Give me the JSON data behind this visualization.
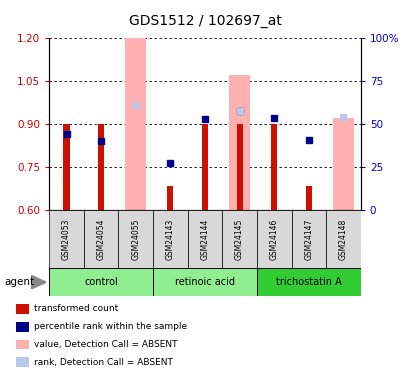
{
  "title": "GDS1512 / 102697_at",
  "samples": [
    "GSM24053",
    "GSM24054",
    "GSM24055",
    "GSM24143",
    "GSM24144",
    "GSM24145",
    "GSM24146",
    "GSM24147",
    "GSM24148"
  ],
  "red_bars": [
    0.9,
    0.9,
    null,
    0.685,
    0.9,
    0.9,
    0.9,
    0.685,
    null
  ],
  "red_bar_base": 0.6,
  "pink_bars": [
    null,
    null,
    1.2,
    null,
    null,
    1.07,
    null,
    null,
    0.92
  ],
  "pink_bar_base": 0.6,
  "blue_squares": [
    0.865,
    0.84,
    null,
    null,
    0.915,
    null,
    0.92,
    0.845,
    null
  ],
  "blue_squares_left_offset": [
    0.0,
    0.0,
    0.0,
    0.0,
    0.0,
    0.0,
    0.0,
    0.0,
    0.0
  ],
  "blue_squares2": [
    null,
    null,
    null,
    0.765,
    null,
    0.945,
    null,
    null,
    null
  ],
  "light_blue_squares": [
    null,
    null,
    0.965,
    null,
    null,
    0.945,
    null,
    null,
    0.925
  ],
  "ylim": [
    0.6,
    1.2
  ],
  "yticks_left": [
    0.6,
    0.75,
    0.9,
    1.05,
    1.2
  ],
  "yticks_right": [
    0,
    25,
    50,
    75,
    100
  ],
  "group_positions": [
    [
      0,
      2,
      "control",
      "#90ee90"
    ],
    [
      3,
      5,
      "retinoic acid",
      "#90ee90"
    ],
    [
      6,
      8,
      "trichostatin A",
      "#32cd32"
    ]
  ],
  "legend_items": [
    {
      "color": "#cc1100",
      "label": "transformed count"
    },
    {
      "color": "#00008b",
      "label": "percentile rank within the sample"
    },
    {
      "color": "#ffb0b0",
      "label": "value, Detection Call = ABSENT"
    },
    {
      "color": "#b8c8e8",
      "label": "rank, Detection Call = ABSENT"
    }
  ]
}
